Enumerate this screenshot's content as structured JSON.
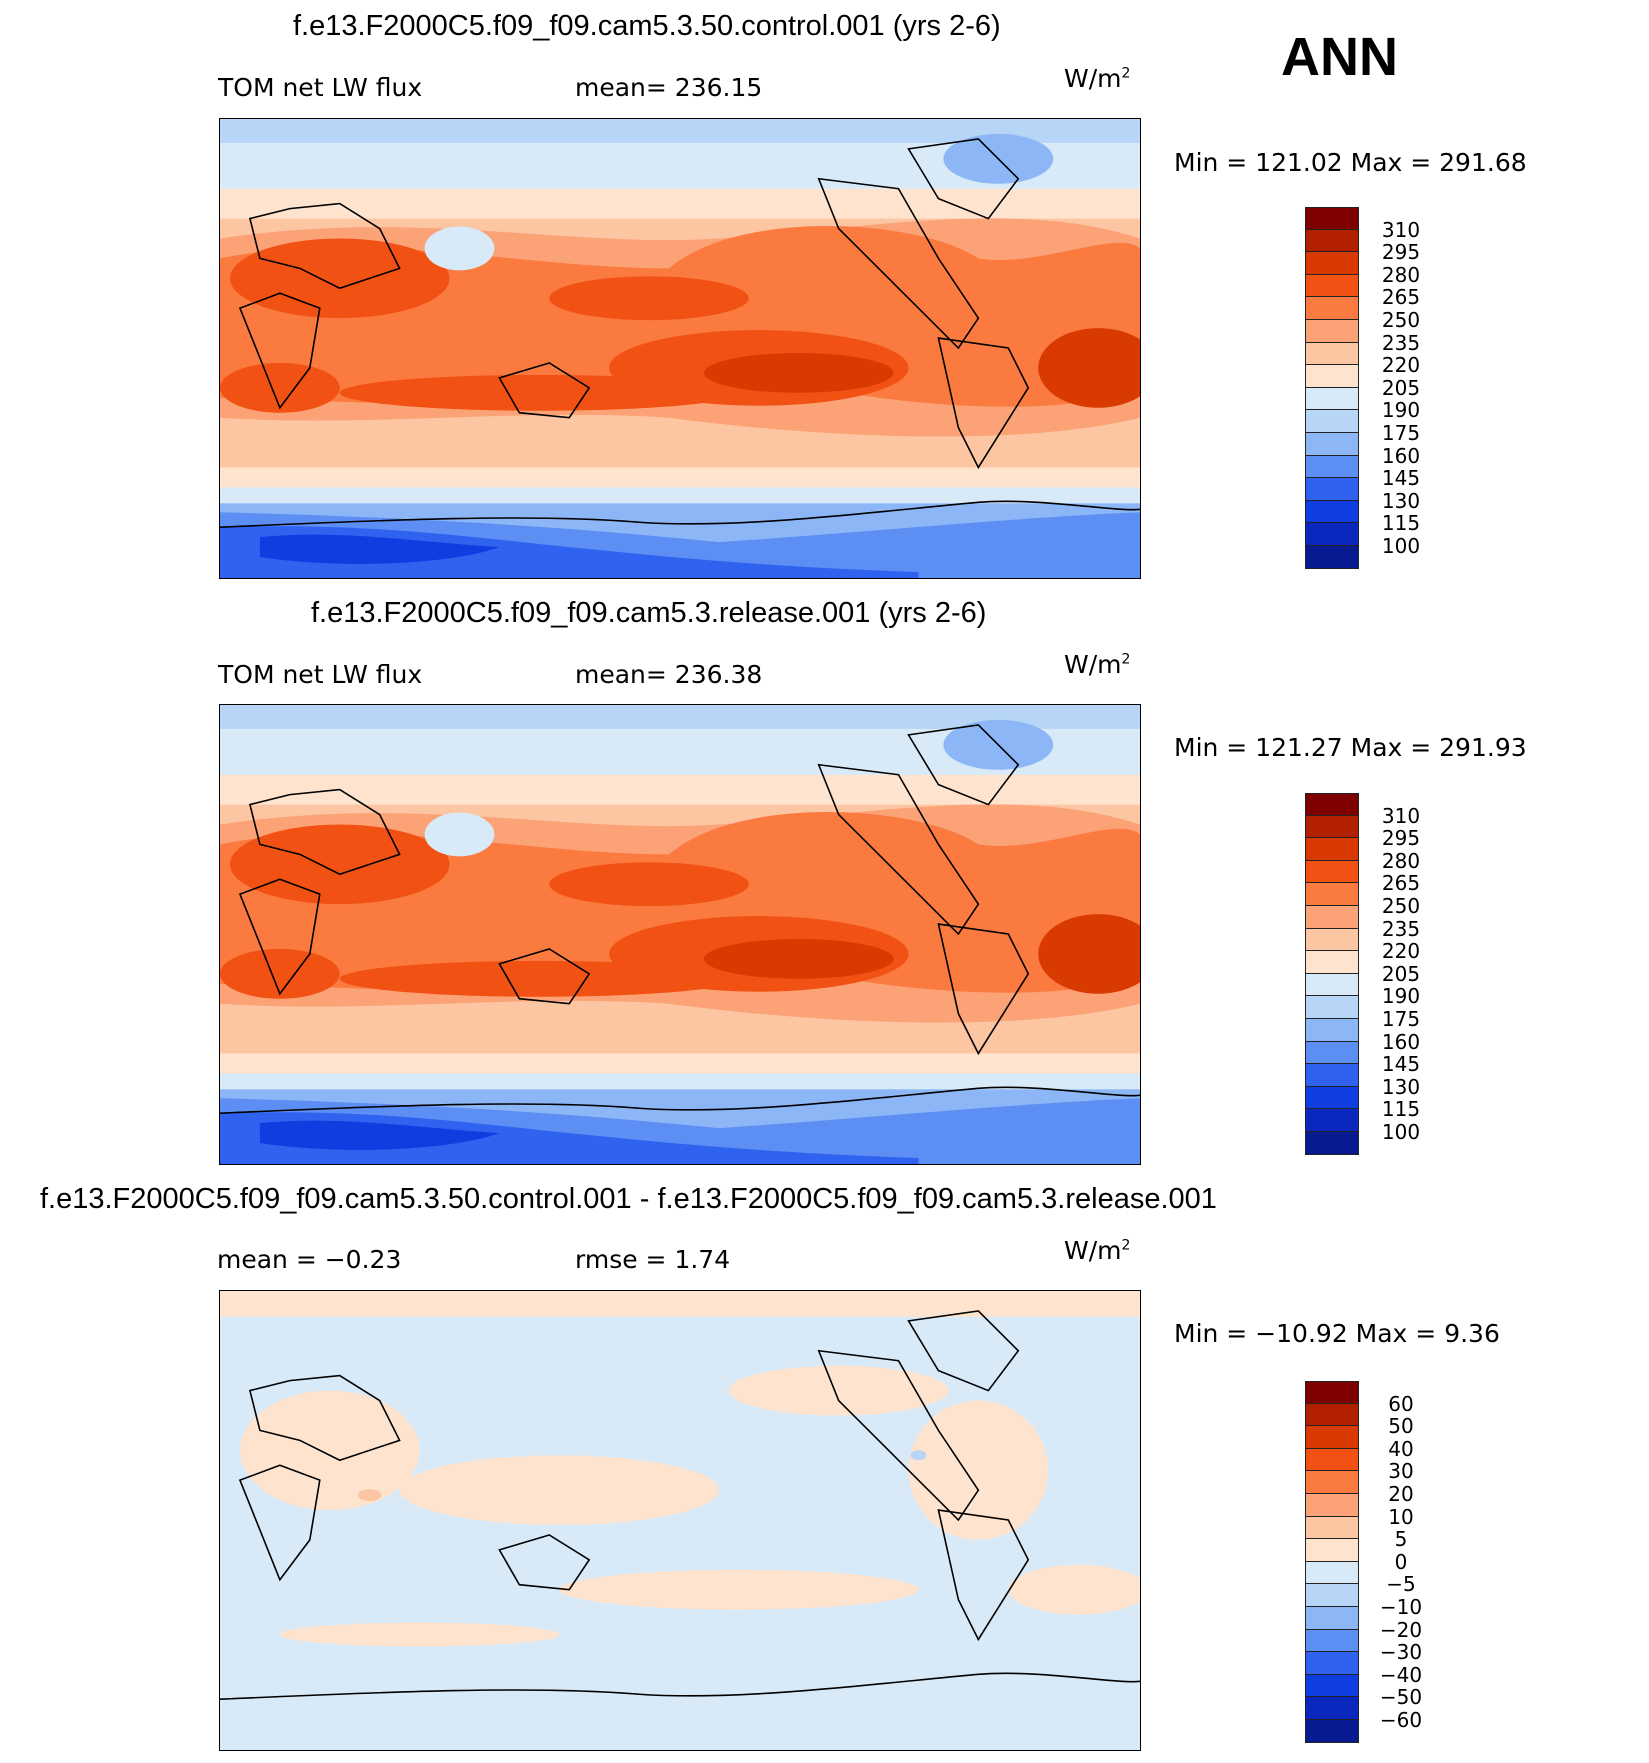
{
  "season": "ANN",
  "units_base": "W/m",
  "units_exp": "2",
  "panels": [
    {
      "title": "f.e13.F2000C5.f09_f09.cam5.3.50.control.001 (yrs 2-6)",
      "left_label": "TOM net LW flux",
      "stat_label": "mean= 236.15",
      "range_label": "Min  =  121.02  Max  =  291.68"
    },
    {
      "title": "f.e13.F2000C5.f09_f09.cam5.3.release.001 (yrs 2-6)",
      "left_label": "TOM net LW flux",
      "stat_label": "mean= 236.38",
      "range_label": "Min  =  121.27  Max  =  291.93"
    },
    {
      "title": "f.e13.F2000C5.f09_f09.cam5.3.50.control.001 - f.e13.F2000C5.f09_f09.cam5.3.release.001",
      "left_label": "mean  =    −0.23",
      "stat_label": "rmse  =     1.74",
      "range_label": "Min  =  −10.92  Max  =     9.36"
    }
  ],
  "colorbar_abs": {
    "labels": [
      "310",
      "295",
      "280",
      "265",
      "250",
      "235",
      "220",
      "205",
      "190",
      "175",
      "160",
      "145",
      "130",
      "115",
      "100"
    ],
    "colors": [
      "#7f0000",
      "#b22000",
      "#d83a00",
      "#f15214",
      "#fa7a40",
      "#fca277",
      "#fdc6a3",
      "#fee4cf",
      "#d8e9f7",
      "#b7d6f7",
      "#8cb6f5",
      "#5c8ef4",
      "#2f62ef",
      "#0f3ee0",
      "#0a28c0",
      "#071a8f"
    ]
  },
  "colorbar_diff": {
    "labels": [
      "60",
      "50",
      "40",
      "30",
      "20",
      "10",
      "5",
      "0",
      "−5",
      "−10",
      "−20",
      "−30",
      "−40",
      "−50",
      "−60"
    ],
    "colors": [
      "#7f0000",
      "#b22000",
      "#d83a00",
      "#f15214",
      "#fa7a40",
      "#fca277",
      "#fdc6a3",
      "#fee4cf",
      "#d8e9f7",
      "#b7d6f7",
      "#8cb6f5",
      "#5c8ef4",
      "#2f62ef",
      "#0f3ee0",
      "#0a28c0",
      "#071a8f"
    ]
  }
}
